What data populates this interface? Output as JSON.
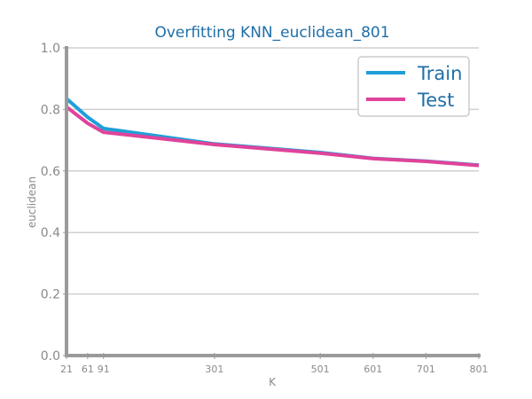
{
  "chart_data": {
    "type": "line",
    "title": "Overfitting KNN_euclidean_801",
    "xlabel": "K",
    "ylabel": "euclidean",
    "xlim": [
      21,
      801
    ],
    "ylim": [
      0.0,
      1.0
    ],
    "x_ticks": [
      21,
      61,
      91,
      301,
      501,
      601,
      701,
      801
    ],
    "y_ticks": [
      "0.0",
      "0.2",
      "0.4",
      "0.6",
      "0.8",
      "1.0"
    ],
    "grid": "horizontal",
    "legend_position": "top-right",
    "series": [
      {
        "name": "Train",
        "color": "#1e9fd8",
        "x": [
          21,
          61,
          91,
          301,
          501,
          601,
          701,
          801
        ],
        "y": [
          0.835,
          0.775,
          0.738,
          0.688,
          0.66,
          0.641,
          0.632,
          0.619
        ]
      },
      {
        "name": "Test",
        "color": "#e0439a",
        "x": [
          21,
          61,
          91,
          301,
          501,
          601,
          701,
          801
        ],
        "y": [
          0.808,
          0.755,
          0.726,
          0.686,
          0.658,
          0.64,
          0.631,
          0.618
        ]
      }
    ]
  }
}
